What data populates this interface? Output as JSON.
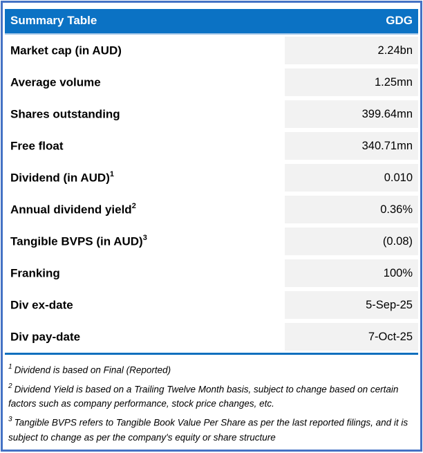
{
  "header": {
    "title": "Summary Table",
    "ticker": "GDG"
  },
  "rows": [
    {
      "label": "Market cap (in AUD)",
      "sup": "",
      "value": "2.24bn"
    },
    {
      "label": "Average volume",
      "sup": "",
      "value": "1.25mn"
    },
    {
      "label": "Shares outstanding",
      "sup": "",
      "value": "399.64mn"
    },
    {
      "label": "Free float",
      "sup": "",
      "value": "340.71mn"
    },
    {
      "label": "Dividend (in AUD)",
      "sup": "1",
      "value": "0.010"
    },
    {
      "label": "Annual dividend yield",
      "sup": "2",
      "value": "0.36%"
    },
    {
      "label": "Tangible BVPS (in AUD)",
      "sup": "3",
      "value": "(0.08)"
    },
    {
      "label": "Franking",
      "sup": "",
      "value": "100%"
    },
    {
      "label": "Div ex-date",
      "sup": "",
      "value": "5-Sep-25"
    },
    {
      "label": "Div pay-date",
      "sup": "",
      "value": "7-Oct-25"
    }
  ],
  "footnotes": [
    {
      "sup": "1",
      "text": "Dividend is based on Final (Reported)"
    },
    {
      "sup": "2",
      "text": "Dividend Yield is based on a Trailing Twelve Month basis, subject to change based on certain factors such as company performance, stock price changes, etc."
    },
    {
      "sup": "3",
      "text": "Tangible BVPS refers to Tangible Book Value Per Share as per the last reported filings, and it is subject to change as per the company's equity or share structure"
    }
  ],
  "colors": {
    "header_bg": "#0b72c4",
    "border": "#4472c4",
    "value_bg": "#f2f2f2",
    "header_text": "#ffffff",
    "header_underline": "#9dc3e6",
    "separator": "#0d6fbe"
  }
}
